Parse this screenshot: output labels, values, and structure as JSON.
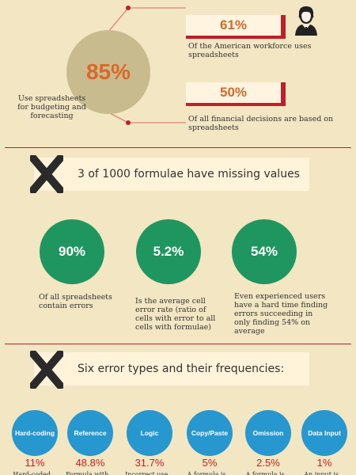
{
  "section1": {
    "main_stat": "85%",
    "main_caption": "Use spreadsheets for budgeting and forecasting",
    "stat1": {
      "value": "61%",
      "caption": "Of the American workforce uses spreadsheets"
    },
    "stat2": {
      "value": "50%",
      "caption": "Of all financial decisions are based on spreadsheets"
    }
  },
  "section2": {
    "header": "3 of 1000 formulae have missing values",
    "circles": [
      {
        "value": "90%",
        "caption": "Of all spreadsheets contain errors"
      },
      {
        "value": "5.2%",
        "caption": "Is the average cell error rate (ratio of cells with error to all cells with formulae)"
      },
      {
        "value": "54%",
        "caption": "Even experienced users have a hard time finding errors succeeding in only finding 54% on average"
      }
    ]
  },
  "section3": {
    "header": "Six error types and their frequencies:",
    "types": [
      {
        "label": "Hard-coding",
        "pct": "11%",
        "desc": "Hard-coded..."
      },
      {
        "label": "Reference",
        "pct": "48.8%",
        "desc": "Formula with..."
      },
      {
        "label": "Logic",
        "pct": "31.7%",
        "desc": "Incorrect use..."
      },
      {
        "label": "Copy/Paste",
        "pct": "5%",
        "desc": "A formula is..."
      },
      {
        "label": "Omission",
        "pct": "2.5%",
        "desc": "A formula is..."
      },
      {
        "label": "Data Input",
        "pct": "1%",
        "desc": "An input is..."
      }
    ]
  },
  "colors": {
    "background": "#f3e6c3",
    "accent_red": "#c01e2a",
    "green": "#1f9660",
    "blue": "#2797cf",
    "orange": "#d9692a"
  }
}
